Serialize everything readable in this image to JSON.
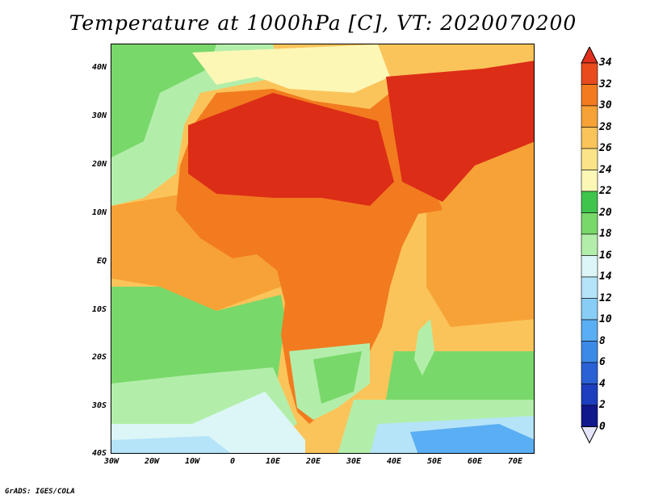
{
  "title": "Temperature at 1000hPa [C], VT: 2020070200",
  "footer": "GrADS: IGES/COLA",
  "map": {
    "lon_range": [
      -30,
      75
    ],
    "lat_range": [
      -40,
      45
    ],
    "lat_ticks": [
      "40N",
      "30N",
      "20N",
      "10N",
      "EQ",
      "10S",
      "20S",
      "30S",
      "40S"
    ],
    "lon_ticks": [
      "30W",
      "20W",
      "10W",
      "0",
      "10E",
      "20E",
      "30E",
      "40E",
      "50E",
      "60E",
      "70E"
    ]
  },
  "colorbar": {
    "levels": [
      "34",
      "32",
      "30",
      "28",
      "26",
      "24",
      "22",
      "20",
      "18",
      "16",
      "14",
      "12",
      "10",
      "8",
      "6",
      "4",
      "2",
      "0"
    ],
    "colors": [
      "#dc2d17",
      "#e94b1c",
      "#f27b1f",
      "#f7a236",
      "#fbc45a",
      "#fbe487",
      "#fdf7b6",
      "#3fc44c",
      "#79d86a",
      "#b2eeaa",
      "#dcf6f7",
      "#b5e3f8",
      "#88cdf6",
      "#5aaef3",
      "#3c8ae8",
      "#2a62d6",
      "#1d3ebf",
      "#11188c"
    ],
    "top_color": "#e0301e",
    "bottom_color": "#e4e4fb"
  }
}
